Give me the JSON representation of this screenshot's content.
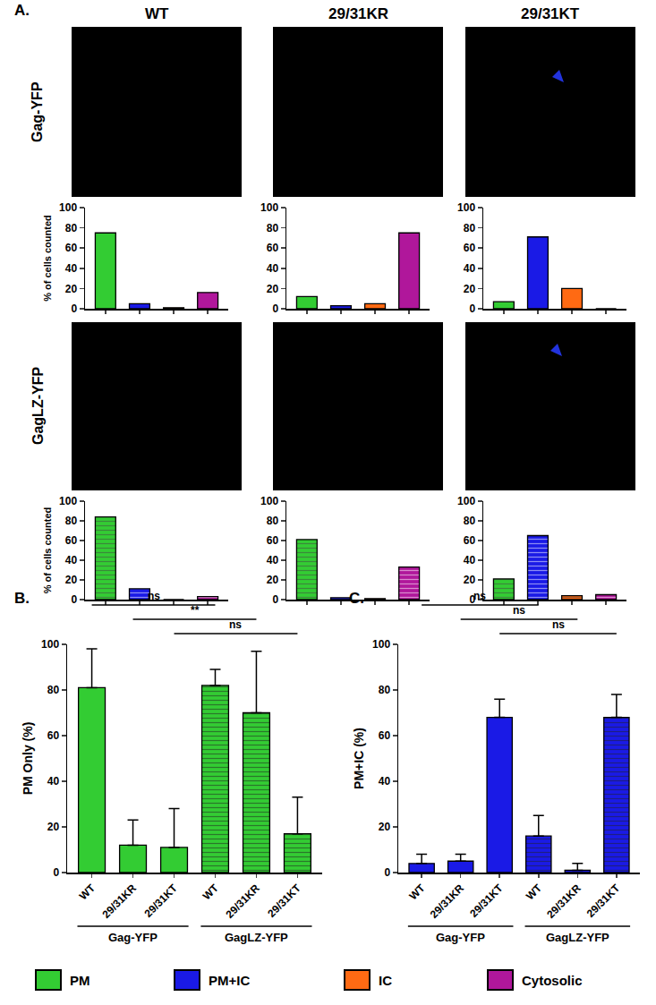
{
  "figure": {
    "panels": [
      "A.",
      "B.",
      "C."
    ],
    "columns": [
      "WT",
      "29/31KR",
      "29/31KT"
    ],
    "rows": [
      "Gag-YFP",
      "GagLZ-YFP"
    ],
    "legend_key": [
      {
        "label": "PM",
        "color": "#33cc33"
      },
      {
        "label": "PM+IC",
        "color": "#1a1ae6"
      },
      {
        "label": "IC",
        "color": "#ff6a13"
      },
      {
        "label": "Cytosolic",
        "color": "#b0179b"
      }
    ]
  },
  "chart_data": [
    {
      "type": "bar",
      "categories": [
        "PM",
        "PM+IC",
        "IC",
        "Cytosolic"
      ],
      "values": [
        75,
        5,
        1,
        16
      ],
      "colors": [
        "#33cc33",
        "#1a1ae6",
        "#ff6a13",
        "#b0179b"
      ],
      "ylim": [
        0,
        100
      ],
      "yticks": [
        0,
        20,
        40,
        60,
        80,
        100
      ],
      "tick_labels": "y",
      "y_label": "% of cells counted",
      "marker": "solid"
    },
    {
      "type": "bar",
      "categories": [
        "PM",
        "PM+IC",
        "IC",
        "Cytosolic"
      ],
      "values": [
        12,
        3,
        5,
        75
      ],
      "colors": [
        "#33cc33",
        "#1a1ae6",
        "#ff6a13",
        "#b0179b"
      ],
      "ylim": [
        0,
        100
      ],
      "yticks": [
        0,
        20,
        40,
        60,
        80,
        100
      ],
      "tick_labels": "y",
      "marker": "solid"
    },
    {
      "type": "bar",
      "categories": [
        "PM",
        "PM+IC",
        "IC",
        "Cytosolic"
      ],
      "values": [
        7,
        71,
        20,
        0
      ],
      "colors": [
        "#33cc33",
        "#1a1ae6",
        "#ff6a13",
        "#b0179b"
      ],
      "ylim": [
        0,
        100
      ],
      "yticks": [
        0,
        20,
        40,
        60,
        80,
        100
      ],
      "tick_labels": "y",
      "marker": "solid"
    },
    {
      "type": "bar",
      "categories": [
        "PM",
        "PM+IC",
        "IC",
        "Cytosolic"
      ],
      "values": [
        84,
        11,
        0,
        3
      ],
      "colors": [
        "#33cc33",
        "#1a1ae6",
        "#ff6a13",
        "#b0179b"
      ],
      "ylim": [
        0,
        100
      ],
      "yticks": [
        0,
        20,
        40,
        60,
        80,
        100
      ],
      "tick_labels": "y",
      "y_label": "% of cells counted",
      "marker": "striped"
    },
    {
      "type": "bar",
      "categories": [
        "PM",
        "PM+IC",
        "IC",
        "Cytosolic"
      ],
      "values": [
        61,
        2,
        1,
        33
      ],
      "colors": [
        "#33cc33",
        "#1a1ae6",
        "#ff6a13",
        "#b0179b"
      ],
      "ylim": [
        0,
        100
      ],
      "yticks": [
        0,
        20,
        40,
        60,
        80,
        100
      ],
      "tick_labels": "y",
      "marker": "striped"
    },
    {
      "type": "bar",
      "categories": [
        "PM",
        "PM+IC",
        "IC",
        "Cytosolic"
      ],
      "values": [
        21,
        65,
        4,
        5
      ],
      "colors": [
        "#33cc33",
        "#1a1ae6",
        "#ff6a13",
        "#b0179b"
      ],
      "ylim": [
        0,
        100
      ],
      "yticks": [
        0,
        20,
        40,
        60,
        80,
        100
      ],
      "tick_labels": "y",
      "marker": "striped"
    },
    {
      "type": "bar",
      "categories": [
        "WT",
        "29/31KR",
        "29/31KT",
        "WT",
        "29/31KR",
        "29/31KT"
      ],
      "series": [
        {
          "name": "Gag-YFP",
          "color": "#33cc33",
          "marker": "solid",
          "values": [
            81,
            12,
            11,
            null,
            null,
            null
          ],
          "errors": [
            17,
            11,
            17,
            null,
            null,
            null
          ]
        },
        {
          "name": "GagLZ-YFP",
          "color": "#33cc33",
          "marker": "striped",
          "values": [
            null,
            null,
            null,
            82,
            70,
            17
          ],
          "errors": [
            null,
            null,
            null,
            7,
            27,
            16
          ]
        }
      ],
      "ylim": [
        0,
        100
      ],
      "yticks": [
        0,
        20,
        40,
        60,
        80,
        100
      ],
      "y_label": "PM Only (%)",
      "comparisons": [
        {
          "from": 0,
          "to": 3,
          "label": "ns"
        },
        {
          "from": 1,
          "to": 4,
          "label": "**"
        },
        {
          "from": 2,
          "to": 5,
          "label": "ns"
        }
      ]
    },
    {
      "type": "bar",
      "categories": [
        "WT",
        "29/31KR",
        "29/31KT",
        "WT",
        "29/31KR",
        "29/31KT"
      ],
      "series": [
        {
          "name": "Gag-YFP",
          "color": "#1a1ae6",
          "marker": "solid",
          "values": [
            4,
            5,
            68,
            null,
            null,
            null
          ],
          "errors": [
            4,
            3,
            8,
            null,
            null,
            null
          ]
        },
        {
          "name": "GagLZ-YFP",
          "color": "#1a1ae6",
          "marker": "striped",
          "values": [
            null,
            null,
            null,
            16,
            1,
            68
          ],
          "errors": [
            null,
            null,
            null,
            9,
            3,
            10
          ]
        }
      ],
      "ylim": [
        0,
        100
      ],
      "yticks": [
        0,
        20,
        40,
        60,
        80,
        100
      ],
      "y_label": "PM+IC (%)",
      "comparisons": [
        {
          "from": 0,
          "to": 3,
          "label": "ns"
        },
        {
          "from": 1,
          "to": 4,
          "label": "ns"
        },
        {
          "from": 2,
          "to": 5,
          "label": "ns"
        }
      ]
    }
  ]
}
